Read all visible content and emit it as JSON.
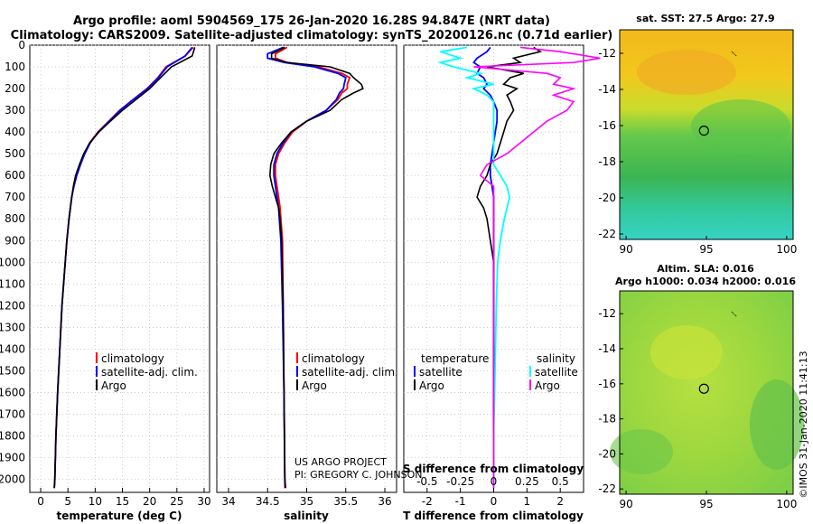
{
  "figure": {
    "title_line1": "Argo profile: aoml 5904569_175 26-Jan-2020 16.28S 94.847E (NRT data)",
    "title_line2": "Climatology: CARS2009. Satellite-adjusted climatology: synTS_20200126.nc (0.71d earlier)",
    "credit_project": "US ARGO PROJECT",
    "credit_pi": "PI: GREGORY C. JOHNSON",
    "timestamp": "©IMOS 31-Jan-2020 11:41:13"
  },
  "colors": {
    "climatology": "#ff0000",
    "satellite": "#0000ff",
    "argo": "#000000",
    "sat_salinity": "#00ffff",
    "argo_salinity": "#ff00ff"
  },
  "depth_axis": {
    "range": [
      0,
      2060
    ],
    "ticks": [
      0,
      100,
      200,
      300,
      400,
      500,
      600,
      700,
      800,
      900,
      1000,
      1100,
      1200,
      1300,
      1400,
      1500,
      1600,
      1700,
      1800,
      1900,
      2000
    ],
    "tick_labels": [
      "0",
      "100",
      "200",
      "300",
      "400",
      "500",
      "600",
      "700",
      "800",
      "900",
      "1000",
      "1100",
      "1200",
      "1300",
      "1400",
      "1500",
      "1600",
      "1700",
      "1800",
      "1900",
      "2000"
    ]
  },
  "legend": {
    "climatology": "climatology",
    "satellite_adj": "satellite-adj. clim.",
    "argo": "Argo",
    "temperature_header": "temperature",
    "salinity_header": "salinity",
    "satellite": "satellite"
  },
  "chart_data": [
    {
      "type": "line",
      "name": "temperature",
      "xlabel": "temperature (deg C)",
      "ylabel": "depth",
      "xlim": [
        -2,
        31
      ],
      "ylim": [
        2060,
        0
      ],
      "x_ticks": [
        0,
        5,
        10,
        15,
        20,
        25,
        30
      ],
      "x_tick_labels": [
        "0",
        "5",
        "10",
        "15",
        "20",
        "25",
        "30"
      ],
      "depth": [
        10,
        50,
        100,
        150,
        200,
        250,
        300,
        350,
        400,
        450,
        500,
        550,
        600,
        650,
        700,
        800,
        900,
        1000,
        1200,
        1400,
        1600,
        1800,
        2000,
        2040
      ],
      "series": [
        {
          "name": "climatology",
          "values": [
            28,
            26.5,
            23,
            21.5,
            19.5,
            17,
            14.5,
            12.5,
            10.5,
            9,
            8,
            7.3,
            6.6,
            6.1,
            5.7,
            5.2,
            4.8,
            4.5,
            3.9,
            3.5,
            3.1,
            2.8,
            2.6,
            2.5
          ]
        },
        {
          "name": "satellite-adj. clim.",
          "values": [
            27.8,
            26.5,
            23.2,
            21.6,
            19.6,
            17,
            14.6,
            12.6,
            10.6,
            9.1,
            8.1,
            7.3,
            6.6,
            6.1,
            5.7,
            5.2,
            4.8,
            4.5,
            3.9,
            3.5,
            3.1,
            2.8,
            2.6,
            2.5
          ]
        },
        {
          "name": "Argo",
          "values": [
            28.3,
            27.8,
            24,
            22,
            20,
            17.5,
            15,
            12.8,
            10.7,
            9,
            7.9,
            7.1,
            6.4,
            6,
            5.7,
            5.2,
            4.8,
            4.5,
            3.9,
            3.5,
            3.1,
            2.8,
            2.6,
            2.5
          ]
        }
      ]
    },
    {
      "type": "line",
      "name": "salinity",
      "xlabel": "salinity",
      "ylabel": "depth",
      "xlim": [
        33.85,
        36.15
      ],
      "ylim": [
        2060,
        0
      ],
      "x_ticks": [
        34,
        34.5,
        35,
        35.5,
        36
      ],
      "x_tick_labels": [
        "34",
        "34.5",
        "35",
        "35.5",
        "36"
      ],
      "depth": [
        10,
        40,
        60,
        80,
        100,
        130,
        150,
        180,
        200,
        220,
        250,
        300,
        350,
        400,
        450,
        500,
        550,
        600,
        650,
        700,
        750,
        800,
        900,
        1200,
        1600,
        2000,
        2040
      ],
      "series": [
        {
          "name": "climatology",
          "values": [
            34.75,
            34.6,
            34.6,
            34.75,
            35.15,
            35.45,
            35.55,
            35.52,
            35.52,
            35.45,
            35.4,
            35.25,
            35.0,
            34.82,
            34.72,
            34.64,
            34.6,
            34.6,
            34.62,
            34.64,
            34.66,
            34.67,
            34.69,
            34.7,
            34.71,
            34.72,
            34.72
          ]
        },
        {
          "name": "satellite-adj. clim.",
          "values": [
            34.7,
            34.5,
            34.5,
            34.72,
            35.1,
            35.4,
            35.5,
            35.48,
            35.47,
            35.42,
            35.38,
            35.25,
            35.0,
            34.8,
            34.7,
            34.62,
            34.58,
            34.58,
            34.6,
            34.62,
            34.64,
            34.65,
            34.67,
            34.69,
            34.71,
            34.72,
            34.73
          ]
        },
        {
          "name": "Argo",
          "values": [
            34.72,
            34.55,
            34.55,
            34.75,
            35.3,
            35.55,
            35.6,
            35.7,
            35.72,
            35.6,
            35.45,
            35.3,
            35.0,
            34.8,
            34.68,
            34.58,
            34.54,
            34.53,
            34.56,
            34.6,
            34.64,
            34.66,
            34.68,
            34.7,
            34.71,
            34.72,
            34.73
          ]
        }
      ]
    },
    {
      "type": "line",
      "name": "difference from climatology",
      "xlabel": "T difference from climatology",
      "xlabel_top": "S difference from climatology",
      "xlim": [
        -2.7,
        2.7
      ],
      "ylim": [
        2060,
        0
      ],
      "x_ticks": [
        -2,
        -1,
        0,
        1,
        2
      ],
      "x_tick_labels": [
        "-2",
        "-1",
        "0",
        "1",
        "2"
      ],
      "s_ticks_labels": [
        "-0.5",
        "-0.25",
        "0",
        "0.25",
        "0.5"
      ],
      "depth": [
        10,
        30,
        60,
        80,
        100,
        130,
        150,
        180,
        200,
        230,
        260,
        300,
        350,
        400,
        450,
        500,
        550,
        600,
        650,
        700,
        750,
        800,
        900,
        1000,
        1200,
        1500,
        1800,
        2000,
        2040
      ],
      "series": [
        {
          "name": "temperature satellite",
          "values": [
            -0.1,
            -0.2,
            -0.5,
            -0.6,
            -0.4,
            -0.5,
            -0.3,
            -0.2,
            -0.3,
            -0.1,
            0,
            0.1,
            0.1,
            0.05,
            0,
            -0.05,
            -0.1,
            -0.1,
            -0.05,
            0,
            0,
            0,
            0,
            0,
            0,
            0,
            0,
            0,
            0
          ]
        },
        {
          "name": "temperature Argo",
          "values": [
            1.2,
            1.4,
            0.6,
            0.8,
            -0.2,
            0.9,
            0.5,
            0.3,
            0.7,
            0.4,
            0.5,
            0.6,
            0.4,
            0.3,
            0.2,
            0.1,
            -0.1,
            -0.2,
            -0.4,
            -0.5,
            -0.3,
            -0.2,
            -0.1,
            0,
            0,
            0,
            0,
            0,
            0
          ]
        },
        {
          "name": "salinity satellite",
          "values": [
            -0.2,
            -0.4,
            -0.25,
            -0.4,
            -0.3,
            -0.1,
            -0.2,
            0,
            -0.15,
            -0.05,
            0,
            0,
            0,
            0,
            0,
            0,
            0,
            0.05,
            0.1,
            0.12,
            0.1,
            0.08,
            0.05,
            0.03,
            0.02,
            0.01,
            0,
            0,
            0
          ]
        },
        {
          "name": "salinity Argo",
          "values": [
            0.2,
            0.5,
            0.8,
            0.6,
            -0.15,
            0.4,
            0.5,
            0.45,
            0.6,
            0.45,
            0.6,
            0.55,
            0.4,
            0.3,
            0.2,
            0.1,
            -0.05,
            -0.1,
            0,
            0,
            0,
            0,
            0,
            0,
            0,
            0,
            0,
            0,
            0
          ]
        }
      ]
    },
    {
      "type": "heatmap",
      "name": "satellite SST map",
      "title": "sat. SST: 27.5 Argo: 27.9",
      "x_tick_labels": [
        "90",
        "95",
        "100"
      ],
      "y_tick_labels": [
        "-12",
        "-14",
        "-16",
        "-18",
        "-20",
        "-22"
      ],
      "xlim": [
        89.6,
        100.4
      ],
      "ylim": [
        -22.3,
        -10.7
      ],
      "argo_position": {
        "lon": 94.847,
        "lat": -16.28
      },
      "track_start": {
        "lon": 96.8,
        "lat": -12.1
      }
    },
    {
      "type": "heatmap",
      "name": "altimetry SLA map",
      "title_line1": "Altim. SLA: 0.016",
      "title_line2": "Argo h1000: 0.034 h2000: 0.016",
      "x_tick_labels": [
        "90",
        "95",
        "100"
      ],
      "y_tick_labels": [
        "-12",
        "-14",
        "-16",
        "-18",
        "-20",
        "-22"
      ],
      "xlim": [
        89.6,
        100.4
      ],
      "ylim": [
        -22.3,
        -10.7
      ],
      "argo_position": {
        "lon": 94.847,
        "lat": -16.28
      },
      "track_start": {
        "lon": 96.8,
        "lat": -12.1
      }
    }
  ]
}
